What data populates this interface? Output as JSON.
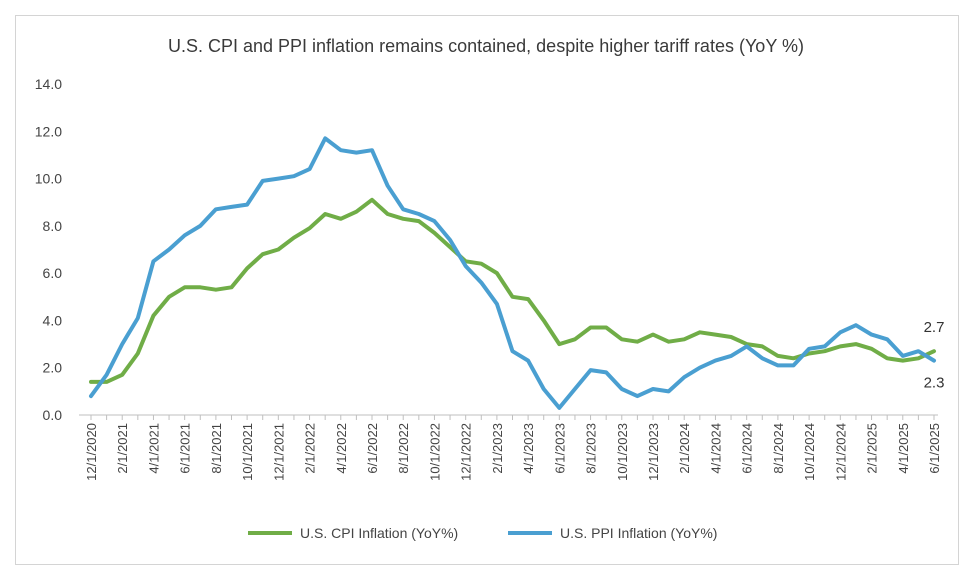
{
  "chart_data": {
    "type": "line",
    "title": "U.S. CPI and PPI inflation remains contained, despite higher tariff rates (YoY %)",
    "ylim": [
      0,
      14
    ],
    "yticks": [
      "0.0",
      "2.0",
      "4.0",
      "6.0",
      "8.0",
      "10.0",
      "12.0",
      "14.0"
    ],
    "x_tick_labels": [
      "12/1/2020",
      "2/1/2021",
      "4/1/2021",
      "6/1/2021",
      "8/1/2021",
      "10/1/2021",
      "12/1/2021",
      "2/1/2022",
      "4/1/2022",
      "6/1/2022",
      "8/1/2022",
      "10/1/2022",
      "12/1/2022",
      "2/1/2023",
      "4/1/2023",
      "6/1/2023",
      "8/1/2023",
      "10/1/2023",
      "12/1/2023",
      "2/1/2024",
      "4/1/2024",
      "6/1/2024",
      "8/1/2024",
      "10/1/2024",
      "12/1/2024",
      "2/1/2025",
      "4/1/2025",
      "6/1/2025"
    ],
    "grid": false,
    "legend_position": "bottom",
    "series": [
      {
        "name": "U.S. CPI Inflation (YoY%)",
        "color": "#70ad47",
        "values": [
          1.4,
          1.4,
          1.7,
          2.6,
          4.2,
          5.0,
          5.4,
          5.4,
          5.3,
          5.4,
          6.2,
          6.8,
          7.0,
          7.5,
          7.9,
          8.5,
          8.3,
          8.6,
          9.1,
          8.5,
          8.3,
          8.2,
          7.7,
          7.1,
          6.5,
          6.4,
          6.0,
          5.0,
          4.9,
          4.0,
          3.0,
          3.2,
          3.7,
          3.7,
          3.2,
          3.1,
          3.4,
          3.1,
          3.2,
          3.5,
          3.4,
          3.3,
          3.0,
          2.9,
          2.5,
          2.4,
          2.6,
          2.7,
          2.9,
          3.0,
          2.8,
          2.4,
          2.3,
          2.4,
          2.7
        ],
        "end_label": "2.7"
      },
      {
        "name": "U.S. PPI Inflation (YoY%)",
        "color": "#4a9fd1",
        "values": [
          0.8,
          1.7,
          3.0,
          4.1,
          6.5,
          7.0,
          7.6,
          8.0,
          8.7,
          8.8,
          8.9,
          9.9,
          10.0,
          10.1,
          10.4,
          11.7,
          11.2,
          11.1,
          11.2,
          9.7,
          8.7,
          8.5,
          8.2,
          7.4,
          6.3,
          5.6,
          4.7,
          2.7,
          2.3,
          1.1,
          0.3,
          1.1,
          1.9,
          1.8,
          1.1,
          0.8,
          1.1,
          1.0,
          1.6,
          2.0,
          2.3,
          2.5,
          2.9,
          2.4,
          2.1,
          2.1,
          2.8,
          2.9,
          3.5,
          3.8,
          3.4,
          3.2,
          2.5,
          2.7,
          2.3
        ],
        "end_label": "2.3"
      }
    ]
  }
}
